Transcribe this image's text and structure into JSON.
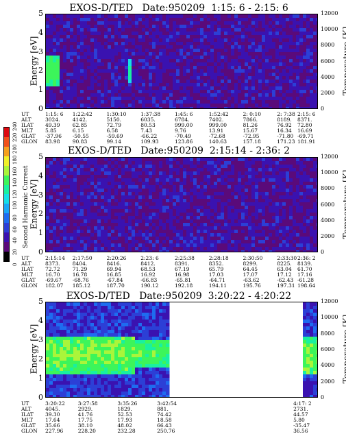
{
  "colorbar": {
    "label": "Second Harmonic Current",
    "ticks": [
      "0",
      "20",
      "40",
      "60",
      "80",
      "100",
      "120",
      "140",
      "160",
      "180",
      "200",
      "220",
      "240"
    ],
    "colors": [
      "#000000",
      "#5a0a7a",
      "#3a12b0",
      "#2c3fd6",
      "#1e6cf0",
      "#19a8f5",
      "#15dfe6",
      "#19f0a0",
      "#3cf55a",
      "#aaf53a",
      "#f0f02a",
      "#f5a01e",
      "#f0501a",
      "#dc0a10"
    ]
  },
  "chart_data": [
    {
      "type": "heatmap",
      "title": "EXOS-D/TED   Date:950209  1:15: 6 - 2:15: 6",
      "ylabel": "Energy [eV]",
      "ylabel_right": "Temperature [K]",
      "ylim": [
        0,
        5
      ],
      "yticks": [
        "0",
        "1",
        "2",
        "3",
        "4",
        "5"
      ],
      "ylim_right": [
        0,
        12000
      ],
      "yticks_right": [
        "0",
        "2000",
        "4000",
        "6000",
        "8000",
        "10000",
        "12000"
      ],
      "x_ticks": [
        "1:15: 6",
        "1:22:42",
        "1:30:10",
        "1:37:38",
        "1:45: 6",
        "1:52:42",
        "2: 0:10",
        "2: 7:38",
        "2:15: 6"
      ],
      "ephemeris_labels": [
        "UT",
        "ALT",
        "ILAT",
        "MLT",
        "GLAT",
        "GLON"
      ],
      "ephemeris": [
        [
          "1:15: 6",
          "3024.",
          "49.39",
          "5.85",
          "-37.96",
          "83.98"
        ],
        [
          "1:22:42",
          "4142.",
          "62.85",
          "6.15",
          "-50.55",
          "90.83"
        ],
        [
          "1:30:10",
          "5150.",
          "72.79",
          "6.58",
          "-59.69",
          "99.14"
        ],
        [
          "1:37:38",
          "6035.",
          "80.53",
          "7.43",
          "-66.22",
          "109.93"
        ],
        [
          "1:45: 6",
          "6784.",
          "999.00",
          "9.76",
          "-70.49",
          "123.86"
        ],
        [
          "1:52:42",
          "7402.",
          "999.00",
          "13.91",
          "-72.68",
          "140.63"
        ],
        [
          "2: 0:10",
          "7866.",
          "81.26",
          "15.67",
          "-72.95",
          "157.18"
        ],
        [
          "2: 7:38",
          "8189.",
          "76.92",
          "16.34",
          "-71.80",
          "171.23"
        ],
        [
          "2:15: 6",
          "8371.",
          "72.80",
          "16.69",
          "-69.71",
          "181.91"
        ]
      ],
      "features": [
        {
          "t_start": 0.0,
          "t_end": 0.045,
          "e_low": 1.2,
          "e_high": 2.9,
          "level": 140,
          "peak": 160
        },
        {
          "t_start": 0.305,
          "t_end": 0.315,
          "e_low": 1.4,
          "e_high": 2.6,
          "level": 120,
          "peak": 150
        }
      ],
      "background_level": 40
    },
    {
      "type": "heatmap",
      "title": "EXOS-D/TED   Date:950209  2:15:14 - 2:36: 2",
      "ylabel": "Energy [eV]",
      "ylabel_right": "Temperature [K]",
      "ylim": [
        0,
        5
      ],
      "yticks": [
        "0",
        "1",
        "2",
        "3",
        "4",
        "5"
      ],
      "ylim_right": [
        0,
        12000
      ],
      "yticks_right": [
        "0",
        "2000",
        "4000",
        "6000",
        "8000",
        "10000",
        "12000"
      ],
      "x_ticks": [
        "2:15:14",
        "2:17:50",
        "2:20:26",
        "2:23: 6",
        "2:25:38",
        "2:28:18",
        "2:30:50",
        "2:33:30",
        "2:36: 2"
      ],
      "ephemeris_labels": [
        "UT",
        "ALT",
        "ILAT",
        "MLT",
        "GLAT",
        "GLON"
      ],
      "ephemeris": [
        [
          "2:15:14",
          "8373.",
          "72.72",
          "16.70",
          "-69.67",
          "182.07"
        ],
        [
          "2:17:50",
          "8404.",
          "71.29",
          "16.78",
          "-68.76",
          "185.12"
        ],
        [
          "2:20:26",
          "8416.",
          "69.94",
          "16.85",
          "-67.84",
          "187.70"
        ],
        [
          "2:23: 6",
          "8412.",
          "68.53",
          "16.92",
          "-66.83",
          "190.12"
        ],
        [
          "2:25:38",
          "8391.",
          "67.19",
          "16.98",
          "-65.81",
          "192.18"
        ],
        [
          "2:28:18",
          "8352.",
          "65.79",
          "17.03",
          "-64.71",
          "194.11"
        ],
        [
          "2:30:50",
          "8299.",
          "64.45",
          "17.07",
          "-63.62",
          "195.76"
        ],
        [
          "2:33:30",
          "8225.",
          "63.04",
          "17.12",
          "-62.43",
          "197.31"
        ],
        [
          "2:36: 2",
          "8139.",
          "61.70",
          "17.16",
          "-61.28",
          "198.64"
        ]
      ],
      "features": [],
      "background_level": 40
    },
    {
      "type": "heatmap",
      "title": "EXOS-D/TED   Date:950209  3:20:22 - 4:20:22",
      "ylabel": "Energy [eV]",
      "ylabel_right": "Temperature [K]",
      "ylim": [
        0,
        5
      ],
      "yticks": [
        "0",
        "1",
        "2",
        "3",
        "4",
        "5"
      ],
      "ylim_right": [
        0,
        12000
      ],
      "yticks_right": [
        "0",
        "2000",
        "4000",
        "6000",
        "8000",
        "10000",
        "12000"
      ],
      "x_ticks": [
        "3:20:22",
        "3:27:58",
        "3:35:26",
        "3:42:54",
        "4:17: 2"
      ],
      "ephemeris_labels": [
        "UT",
        "ALT",
        "ILAT",
        "MLT",
        "GLAT",
        "GLON"
      ],
      "ephemeris": [
        [
          "3:20:22",
          "4045.",
          "39.30",
          "17.64",
          "35.66",
          "227.96"
        ],
        [
          "3:27:58",
          "2929.",
          "41.76",
          "17.75",
          "38.10",
          "228.20"
        ],
        [
          "3:35:26",
          "1829.",
          "52.53",
          "17.93",
          "48.02",
          "232.28"
        ],
        [
          "3:42:54",
          "881.",
          "74.42",
          "18.58",
          "66.43",
          "250.76"
        ],
        [
          "4:17: 2",
          "2731.",
          "44.57",
          "5.80",
          "-35.47",
          "36.56"
        ]
      ],
      "data_gap": {
        "t_start": 0.445,
        "t_end": 0.935
      },
      "features": [
        {
          "t_start": 0.0,
          "t_end": 0.33,
          "e_low": 1.3,
          "e_high": 3.3,
          "level": 150,
          "peak": 170
        },
        {
          "t_start": 0.33,
          "t_end": 0.445,
          "e_low": 1.6,
          "e_high": 3.0,
          "level": 140,
          "peak": 160
        },
        {
          "t_start": 0.935,
          "t_end": 1.0,
          "e_low": 1.2,
          "e_high": 3.2,
          "level": 150,
          "peak": 170
        }
      ],
      "background_level": 60
    }
  ]
}
